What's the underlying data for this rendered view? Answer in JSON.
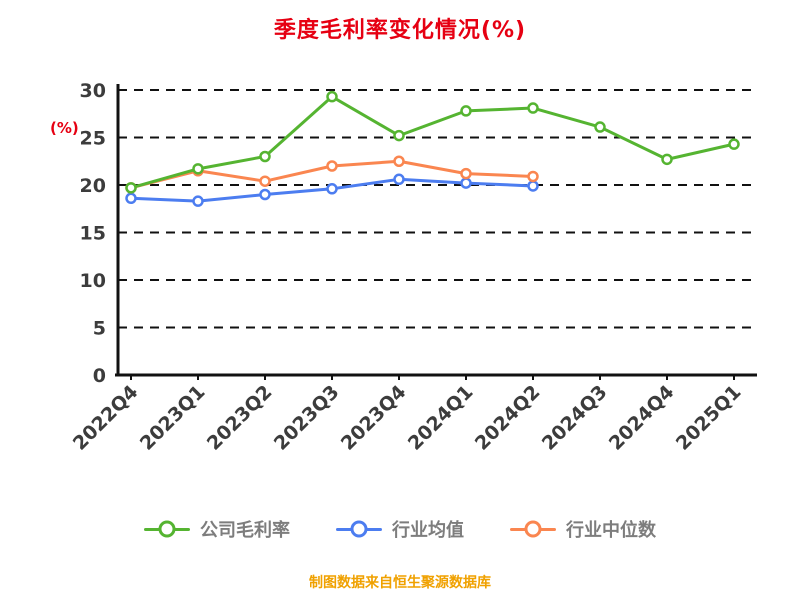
{
  "title": "季度毛利率变化情况(%)",
  "y_axis_label": "(%)",
  "footer": "制图数据来自恒生聚源数据库",
  "colors": {
    "title": "#E60012",
    "axis": "#111111",
    "tick_label": "#3C3C3C",
    "legend_label": "#7D7D7D",
    "footer": "#F0A100"
  },
  "chart_data": {
    "type": "line",
    "title": "季度毛利率变化情况(%)",
    "ylabel": "(%)",
    "categories": [
      "2022Q4",
      "2023Q1",
      "2023Q2",
      "2023Q3",
      "2023Q4",
      "2024Q1",
      "2024Q2",
      "2024Q3",
      "2024Q4",
      "2025Q1"
    ],
    "series": [
      {
        "name": "公司毛利率",
        "color": "#55B431",
        "values": [
          19.7,
          21.7,
          23.0,
          29.3,
          25.2,
          27.8,
          28.1,
          26.1,
          22.7,
          24.3
        ]
      },
      {
        "name": "行业均值",
        "color": "#4C7DF0",
        "values": [
          18.6,
          18.3,
          19.0,
          19.6,
          20.6,
          20.2,
          19.9,
          null,
          null,
          null
        ]
      },
      {
        "name": "行业中位数",
        "color": "#FA8650",
        "values": [
          19.7,
          21.5,
          20.4,
          22.0,
          22.5,
          21.2,
          20.9,
          null,
          null,
          null
        ]
      }
    ],
    "ylim": [
      0,
      30
    ],
    "yticks": [
      0,
      5,
      10,
      15,
      20,
      25,
      30
    ],
    "grid": "dashed-horizontal",
    "legend_position": "bottom",
    "marker": "open-circle"
  }
}
